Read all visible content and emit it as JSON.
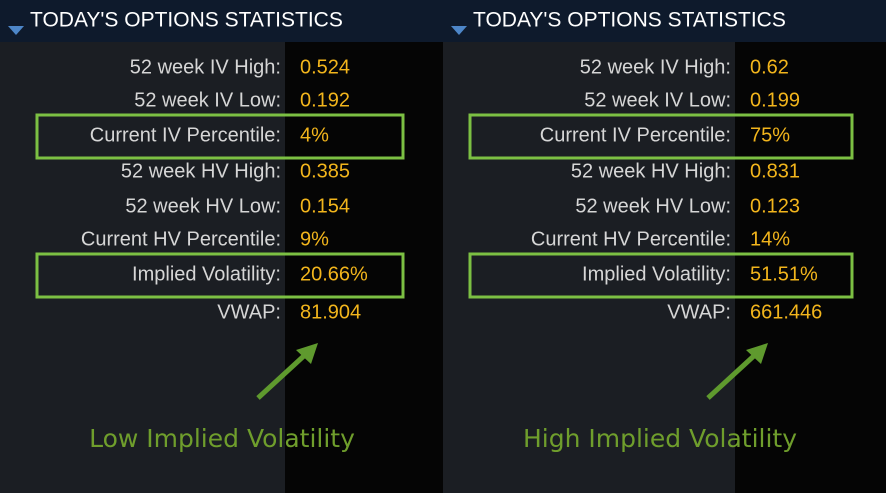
{
  "panels": [
    {
      "title": "TODAY'S OPTIONS STATISTICS",
      "rows": [
        {
          "label": "52 week IV High:",
          "value": "0.524"
        },
        {
          "label": "52 week IV Low:",
          "value": "0.192"
        },
        {
          "label": "Current IV Percentile:",
          "value": "4%"
        },
        {
          "label": "52 week HV High:",
          "value": "0.385"
        },
        {
          "label": "52 week HV Low:",
          "value": "0.154"
        },
        {
          "label": "Current HV Percentile:",
          "value": "9%"
        },
        {
          "label": "Implied Volatility:",
          "value": "20.66%"
        },
        {
          "label": "VWAP:",
          "value": "81.904"
        }
      ],
      "caption": "Low Implied Volatility"
    },
    {
      "title": "TODAY'S OPTIONS STATISTICS",
      "rows": [
        {
          "label": "52 week IV High:",
          "value": "0.62"
        },
        {
          "label": "52 week IV Low:",
          "value": "0.199"
        },
        {
          "label": "Current IV Percentile:",
          "value": "75%"
        },
        {
          "label": "52 week HV High:",
          "value": "0.831"
        },
        {
          "label": "52 week HV Low:",
          "value": "0.123"
        },
        {
          "label": "Current HV Percentile:",
          "value": "14%"
        },
        {
          "label": "Implied Volatility:",
          "value": "51.51%"
        },
        {
          "label": "VWAP:",
          "value": "661.446"
        }
      ],
      "caption": "High Implied Volatility"
    }
  ]
}
